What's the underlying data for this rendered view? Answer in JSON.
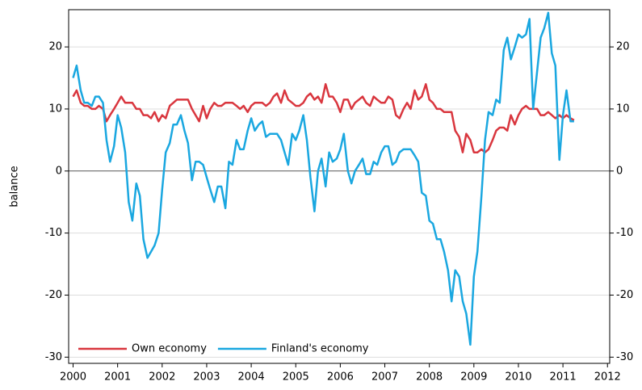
{
  "chart_data": {
    "type": "line",
    "ylabel": "balance",
    "x": [
      2000,
      2000.08,
      2000.17,
      2000.25,
      2000.33,
      2000.42,
      2000.5,
      2000.58,
      2000.67,
      2000.75,
      2000.83,
      2000.92,
      2001,
      2001.08,
      2001.17,
      2001.25,
      2001.33,
      2001.42,
      2001.5,
      2001.58,
      2001.67,
      2001.75,
      2001.83,
      2001.92,
      2002,
      2002.08,
      2002.17,
      2002.25,
      2002.33,
      2002.42,
      2002.5,
      2002.58,
      2002.67,
      2002.75,
      2002.83,
      2002.92,
      2003,
      2003.08,
      2003.17,
      2003.25,
      2003.33,
      2003.42,
      2003.5,
      2003.58,
      2003.67,
      2003.75,
      2003.83,
      2003.92,
      2004,
      2004.08,
      2004.17,
      2004.25,
      2004.33,
      2004.42,
      2004.5,
      2004.58,
      2004.67,
      2004.75,
      2004.83,
      2004.92,
      2005,
      2005.08,
      2005.17,
      2005.25,
      2005.33,
      2005.42,
      2005.5,
      2005.58,
      2005.67,
      2005.75,
      2005.83,
      2005.92,
      2006,
      2006.08,
      2006.17,
      2006.25,
      2006.33,
      2006.42,
      2006.5,
      2006.58,
      2006.67,
      2006.75,
      2006.83,
      2006.92,
      2007,
      2007.08,
      2007.17,
      2007.25,
      2007.33,
      2007.42,
      2007.5,
      2007.58,
      2007.67,
      2007.75,
      2007.83,
      2007.92,
      2008,
      2008.08,
      2008.17,
      2008.25,
      2008.33,
      2008.42,
      2008.5,
      2008.58,
      2008.67,
      2008.75,
      2008.83,
      2008.92,
      2009,
      2009.08,
      2009.17,
      2009.25,
      2009.33,
      2009.42,
      2009.5,
      2009.58,
      2009.67,
      2009.75,
      2009.83,
      2009.92,
      2010,
      2010.08,
      2010.17,
      2010.25,
      2010.33,
      2010.42,
      2010.5,
      2010.58,
      2010.67,
      2010.75,
      2010.83,
      2010.92,
      2011,
      2011.08,
      2011.17,
      2011.25
    ],
    "series": [
      {
        "name": "Own economy",
        "color": "#d9363e",
        "values": [
          12,
          13,
          11,
          10.5,
          10.5,
          10,
          10,
          10.5,
          10,
          8,
          9,
          10,
          11,
          12,
          11,
          11,
          11,
          10,
          10,
          9,
          9,
          8.5,
          9.5,
          8,
          9,
          8.5,
          10.5,
          11,
          11.5,
          11.5,
          11.5,
          11.5,
          10,
          9,
          8,
          10.5,
          8.5,
          10,
          11,
          10.5,
          10.5,
          11,
          11,
          11,
          10.5,
          10,
          10.5,
          9.5,
          10.5,
          11,
          11,
          11,
          10.5,
          11,
          12,
          12.5,
          11,
          13,
          11.5,
          11,
          10.5,
          10.5,
          11,
          12,
          12.5,
          11.5,
          12,
          11,
          14,
          12,
          12,
          11,
          9.5,
          11.5,
          11.5,
          10,
          11,
          11.5,
          12,
          11,
          10.5,
          12,
          11.5,
          11,
          11,
          12,
          11.5,
          9,
          8.5,
          10,
          11,
          10,
          13,
          11.5,
          12,
          14,
          11.5,
          11,
          10,
          10,
          9.5,
          9.5,
          9.5,
          6.5,
          5.5,
          3,
          6,
          5,
          3,
          3,
          3.5,
          3,
          3.5,
          5,
          6.5,
          7,
          7,
          6.5,
          9,
          7.5,
          9,
          10,
          10.5,
          10,
          10,
          10,
          9,
          9,
          9.5,
          9,
          8.5,
          9,
          8.5,
          9,
          8.5,
          8.2
        ]
      },
      {
        "name": "Finland's economy",
        "color": "#1aa7e0",
        "values": [
          15,
          17,
          13,
          11,
          11,
          10.5,
          12,
          12,
          11,
          5,
          1.5,
          4,
          9,
          7,
          3,
          -5,
          -8,
          -2,
          -4,
          -11,
          -14,
          -13,
          -12,
          -10,
          -3,
          3,
          4.5,
          7.5,
          7.5,
          9,
          6.5,
          4.5,
          -1.5,
          1.5,
          1.5,
          1,
          -1,
          -3,
          -5,
          -2.5,
          -2.5,
          -6,
          1.5,
          1,
          5,
          3.5,
          3.5,
          6.5,
          8.5,
          6.5,
          7.5,
          8,
          5.5,
          6,
          6,
          6,
          5,
          3,
          1,
          6,
          5,
          6.5,
          9,
          5,
          -1,
          -6.5,
          0,
          2,
          -2.5,
          3,
          1.5,
          2,
          3.5,
          6,
          0,
          -2,
          0,
          1,
          2,
          -0.5,
          -0.5,
          1.5,
          1,
          3,
          4,
          4,
          1,
          1.5,
          3,
          3.5,
          3.5,
          3.5,
          2.5,
          1.5,
          -3.5,
          -4,
          -8,
          -8.5,
          -11,
          -11,
          -13,
          -16,
          -21,
          -16,
          -17,
          -21,
          -23,
          -28,
          -17,
          -13,
          -4,
          5,
          9.5,
          9,
          11.5,
          11,
          19.5,
          21.5,
          18,
          20,
          22,
          21.5,
          22,
          24.5,
          10,
          16,
          21.5,
          23,
          25.5,
          19,
          17,
          1.8,
          9,
          13,
          8,
          8
        ]
      }
    ],
    "xlim": [
      1999.9,
      2012.05
    ],
    "xticks": [
      2000,
      2001,
      2002,
      2003,
      2004,
      2005,
      2006,
      2007,
      2008,
      2009,
      2010,
      2011,
      2012
    ],
    "ylim": [
      -31,
      26
    ],
    "yticks": [
      -30,
      -20,
      -10,
      0,
      10,
      20
    ],
    "y2lim": [
      -31,
      26
    ],
    "y2ticks": [
      -30,
      -20,
      -10,
      0,
      10,
      20
    ],
    "grid": true,
    "legend": "lower left"
  }
}
